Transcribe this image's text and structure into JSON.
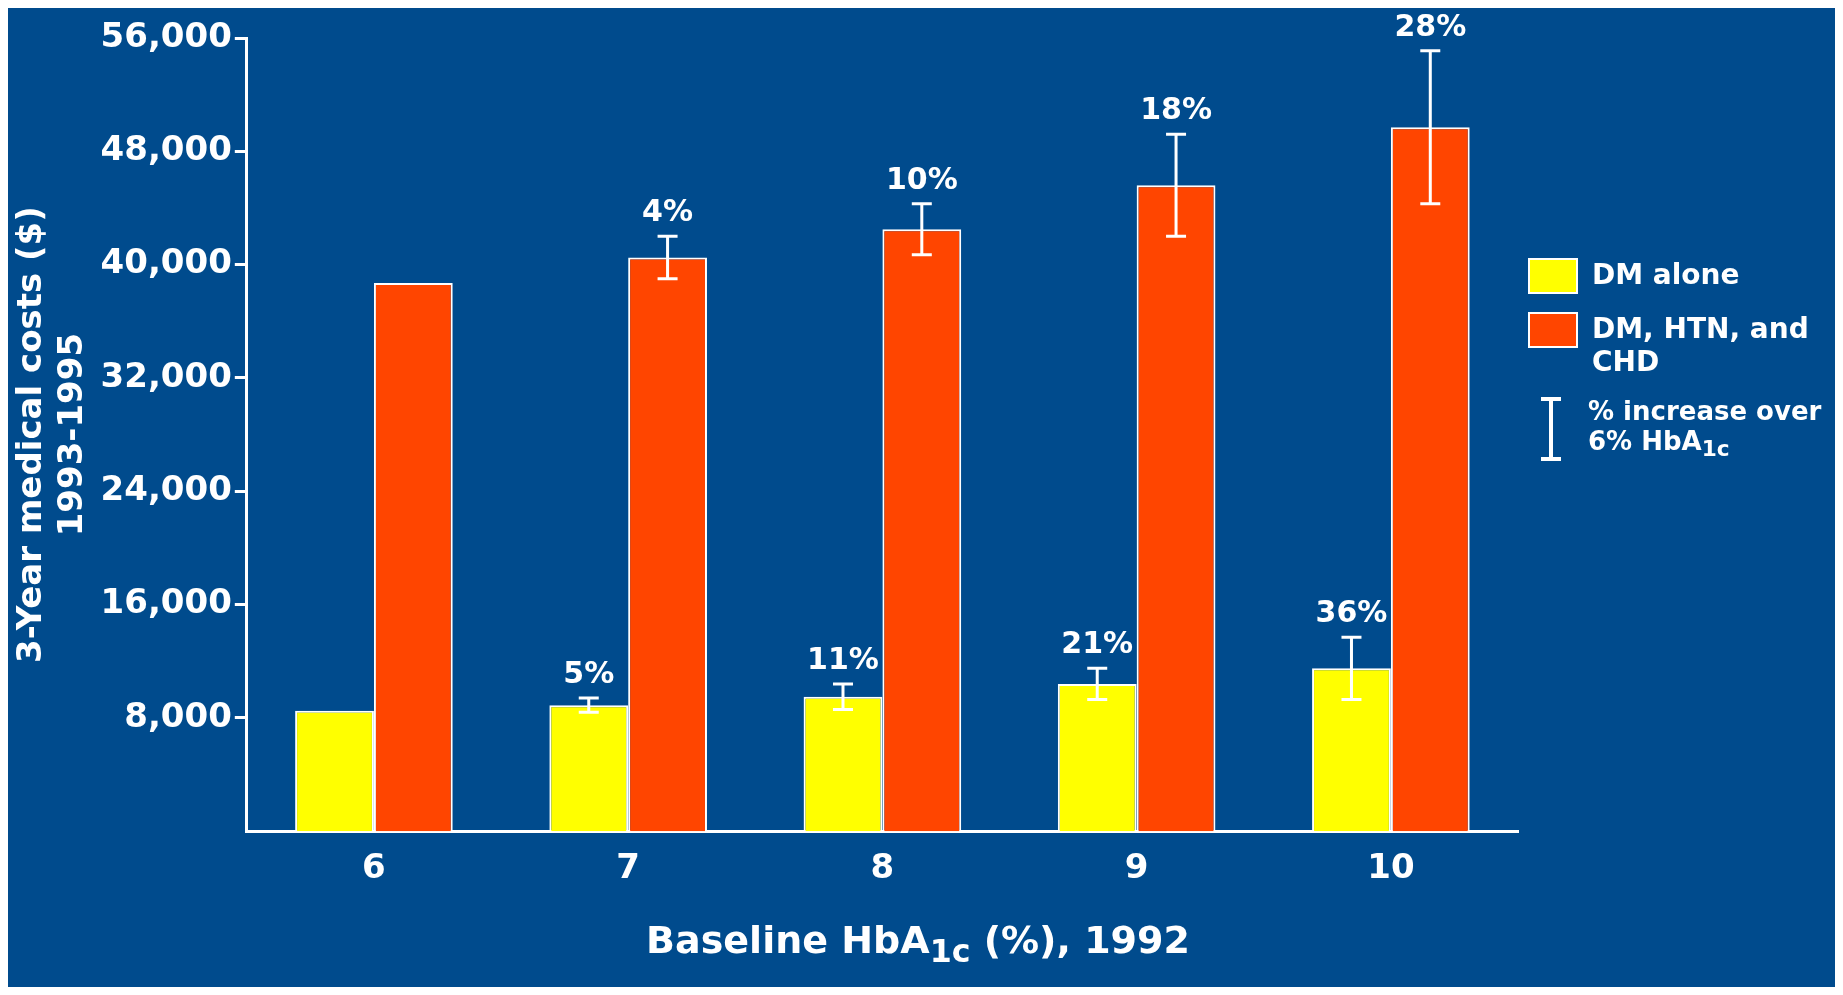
{
  "chart_data": {
    "type": "bar",
    "xlabel": "Baseline HbA$_{1c}$ (%), 1992",
    "ylabel": "3-Year medical costs ($)\n1993-1995",
    "categories": [
      "6",
      "7",
      "8",
      "9",
      "10"
    ],
    "series": [
      {
        "name": "DM alone",
        "color": "#ffff00",
        "values": [
          8500,
          8900,
          9500,
          10400,
          11500
        ],
        "errors": [
          null,
          500,
          900,
          1100,
          2200
        ]
      },
      {
        "name": "DM, HTN, and CHD",
        "color": "#ff4500",
        "values": [
          38700,
          40500,
          42500,
          45600,
          49700
        ],
        "errors": [
          null,
          1500,
          1800,
          3600,
          5400
        ]
      }
    ],
    "ylim": [
      0,
      56000
    ],
    "yticks": [
      {
        "value": 8000,
        "label": "8,000"
      },
      {
        "value": 16000,
        "label": "16,000"
      },
      {
        "value": 24000,
        "label": "24,000"
      },
      {
        "value": 32000,
        "label": "32,000"
      },
      {
        "value": 40000,
        "label": "40,000"
      },
      {
        "value": 48000,
        "label": "48,000"
      },
      {
        "value": 56000,
        "label": "56,000"
      }
    ],
    "grid": false,
    "legend": "right",
    "annotations": [
      "% increase over 6% HbA$_{1c}$",
      {
        "text": "5%",
        "x": "7",
        "y": 8900
      },
      {
        "text": "11%",
        "x": "8",
        "y": 9500
      },
      {
        "text": "21%",
        "x": "9",
        "y": 10400
      },
      {
        "text": "36%",
        "x": "10",
        "y": 11500
      },
      {
        "text": "4%",
        "x": "7",
        "y": 40500
      },
      {
        "text": "10%",
        "x": "8",
        "y": 42500
      },
      {
        "text": "18%",
        "x": "9",
        "y": 45600
      },
      {
        "text": "28%",
        "x": "10",
        "y": 49700
      }
    ]
  }
}
